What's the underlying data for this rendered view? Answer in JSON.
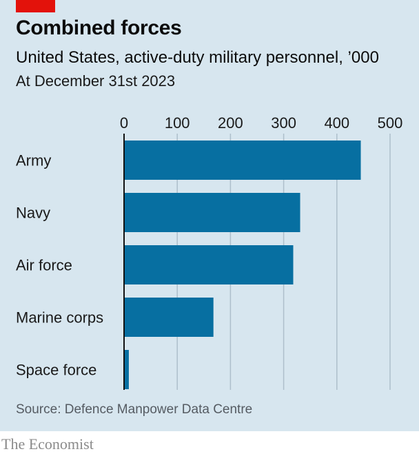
{
  "header": {
    "title": "Combined forces",
    "subtitle": "United States, active-duty military personnel, ’000",
    "date_note": "At December 31st 2023"
  },
  "footer": {
    "source": "Source: Defence Manpower Data Centre",
    "brand": "The Economist"
  },
  "colors": {
    "bar": "#076fa1",
    "background": "#d7e6ef",
    "grid": "#aebfcb",
    "accent": "#e3120b"
  },
  "chart_data": {
    "type": "bar",
    "orientation": "horizontal",
    "categories": [
      "Army",
      "Navy",
      "Air force",
      "Marine corps",
      "Space force"
    ],
    "values": [
      445,
      331,
      318,
      168,
      9
    ],
    "xlim": [
      0,
      500
    ],
    "x_ticks": [
      0,
      100,
      200,
      300,
      400,
      500
    ],
    "grid": true,
    "x_axis_position": "top"
  }
}
